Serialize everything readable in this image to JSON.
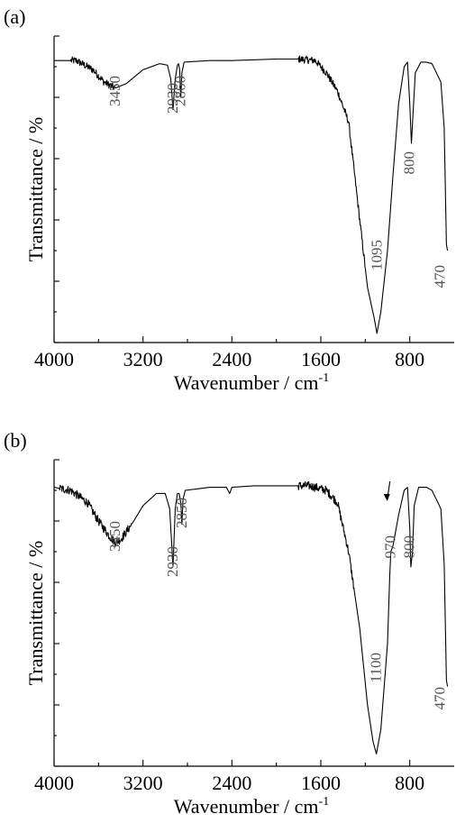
{
  "chart_data": [
    {
      "panel": "(a)",
      "type": "line",
      "xlabel": "Wavenumber / cm",
      "xlabel_sup": "-1",
      "ylabel": "Transmittance / %",
      "xlim": [
        4000,
        400
      ],
      "x_reversed": true,
      "ylim": [
        0,
        100
      ],
      "y_tick_labels": false,
      "x_ticks": [
        4000,
        3200,
        2400,
        1600,
        800
      ],
      "grid": false,
      "series": [
        {
          "points": [
            [
              4000,
              92
            ],
            [
              3800,
              92
            ],
            [
              3650,
              89
            ],
            [
              3550,
              85
            ],
            [
              3450,
              83
            ],
            [
              3350,
              84.5
            ],
            [
              3200,
              89
            ],
            [
              3050,
              91
            ],
            [
              2980,
              90.5
            ],
            [
              2950,
              86
            ],
            [
              2930,
              76
            ],
            [
              2910,
              86
            ],
            [
              2890,
              90.5
            ],
            [
              2880,
              91
            ],
            [
              2870,
              89
            ],
            [
              2860,
              80
            ],
            [
              2850,
              88
            ],
            [
              2830,
              91.5
            ],
            [
              2600,
              92
            ],
            [
              2400,
              92
            ],
            [
              2000,
              92.5
            ],
            [
              1800,
              92.5
            ],
            [
              1650,
              92
            ],
            [
              1550,
              88
            ],
            [
              1450,
              82
            ],
            [
              1350,
              72
            ],
            [
              1250,
              40
            ],
            [
              1180,
              18
            ],
            [
              1120,
              8
            ],
            [
              1095,
              3
            ],
            [
              1060,
              10
            ],
            [
              1000,
              30
            ],
            [
              950,
              55
            ],
            [
              900,
              78
            ],
            [
              850,
              90
            ],
            [
              820,
              91.5
            ],
            [
              800,
              78
            ],
            [
              785,
              65
            ],
            [
              770,
              75
            ],
            [
              750,
              88
            ],
            [
              700,
              91.5
            ],
            [
              650,
              91.5
            ],
            [
              600,
              91
            ],
            [
              560,
              88
            ],
            [
              520,
              85
            ],
            [
              490,
              70
            ],
            [
              470,
              32
            ],
            [
              460,
              30
            ]
          ],
          "noisy_ranges": [
            [
              3450,
              3850
            ],
            [
              1200,
              1800
            ]
          ],
          "noise_amplitude": 1.2
        }
      ],
      "annotations": [
        {
          "text": "3450",
          "x": 3450
        },
        {
          "text": "2930",
          "x": 2930
        },
        {
          "text": "2860",
          "x": 2860
        },
        {
          "text": "800",
          "x": 800
        },
        {
          "text": "1095",
          "x": 1095
        },
        {
          "text": "470",
          "x": 470
        }
      ]
    },
    {
      "panel": "(b)",
      "type": "line",
      "xlabel": "Wavenumber / cm",
      "xlabel_sup": "-1",
      "ylabel": "Transmittance / %",
      "xlim": [
        4000,
        400
      ],
      "x_reversed": true,
      "ylim": [
        0,
        100
      ],
      "y_tick_labels": false,
      "x_ticks": [
        4000,
        3200,
        2400,
        1600,
        800
      ],
      "grid": false,
      "series": [
        {
          "points": [
            [
              4000,
              91
            ],
            [
              3850,
              90
            ],
            [
              3700,
              86
            ],
            [
              3600,
              80
            ],
            [
              3500,
              75
            ],
            [
              3450,
              73
            ],
            [
              3400,
              74
            ],
            [
              3300,
              79
            ],
            [
              3200,
              85
            ],
            [
              3080,
              89
            ],
            [
              3000,
              89
            ],
            [
              2960,
              84
            ],
            [
              2930,
              65
            ],
            [
              2910,
              84
            ],
            [
              2890,
              89
            ],
            [
              2875,
              89
            ],
            [
              2860,
              86
            ],
            [
              2850,
              79
            ],
            [
              2840,
              87
            ],
            [
              2820,
              90
            ],
            [
              2600,
              91
            ],
            [
              2450,
              91
            ],
            [
              2420,
              89
            ],
            [
              2400,
              91
            ],
            [
              2200,
              91.5
            ],
            [
              1900,
              91.5
            ],
            [
              1700,
              91.5
            ],
            [
              1550,
              90
            ],
            [
              1450,
              86
            ],
            [
              1350,
              70
            ],
            [
              1250,
              45
            ],
            [
              1180,
              20
            ],
            [
              1130,
              8
            ],
            [
              1100,
              4
            ],
            [
              1060,
              12
            ],
            [
              1000,
              40
            ],
            [
              980,
              62
            ],
            [
              970,
              70
            ],
            [
              950,
              72
            ],
            [
              900,
              82
            ],
            [
              850,
              90
            ],
            [
              820,
              91
            ],
            [
              800,
              78
            ],
            [
              790,
              65
            ],
            [
              775,
              70
            ],
            [
              760,
              85
            ],
            [
              720,
              91
            ],
            [
              650,
              91
            ],
            [
              600,
              90
            ],
            [
              560,
              87
            ],
            [
              520,
              84
            ],
            [
              490,
              66
            ],
            [
              470,
              28
            ],
            [
              460,
              26
            ]
          ],
          "noisy_ranges": [
            [
              3300,
              3950
            ],
            [
              1300,
              1800
            ]
          ],
          "noise_amplitude": 1.4
        }
      ],
      "annotations": [
        {
          "text": "3450",
          "x": 3450
        },
        {
          "text": "2930",
          "x": 2930
        },
        {
          "text": "2850",
          "x": 2850
        },
        {
          "text": "970",
          "x": 970,
          "arrow": true
        },
        {
          "text": "800",
          "x": 800
        },
        {
          "text": "1100",
          "x": 1100
        },
        {
          "text": "470",
          "x": 470
        }
      ]
    }
  ]
}
